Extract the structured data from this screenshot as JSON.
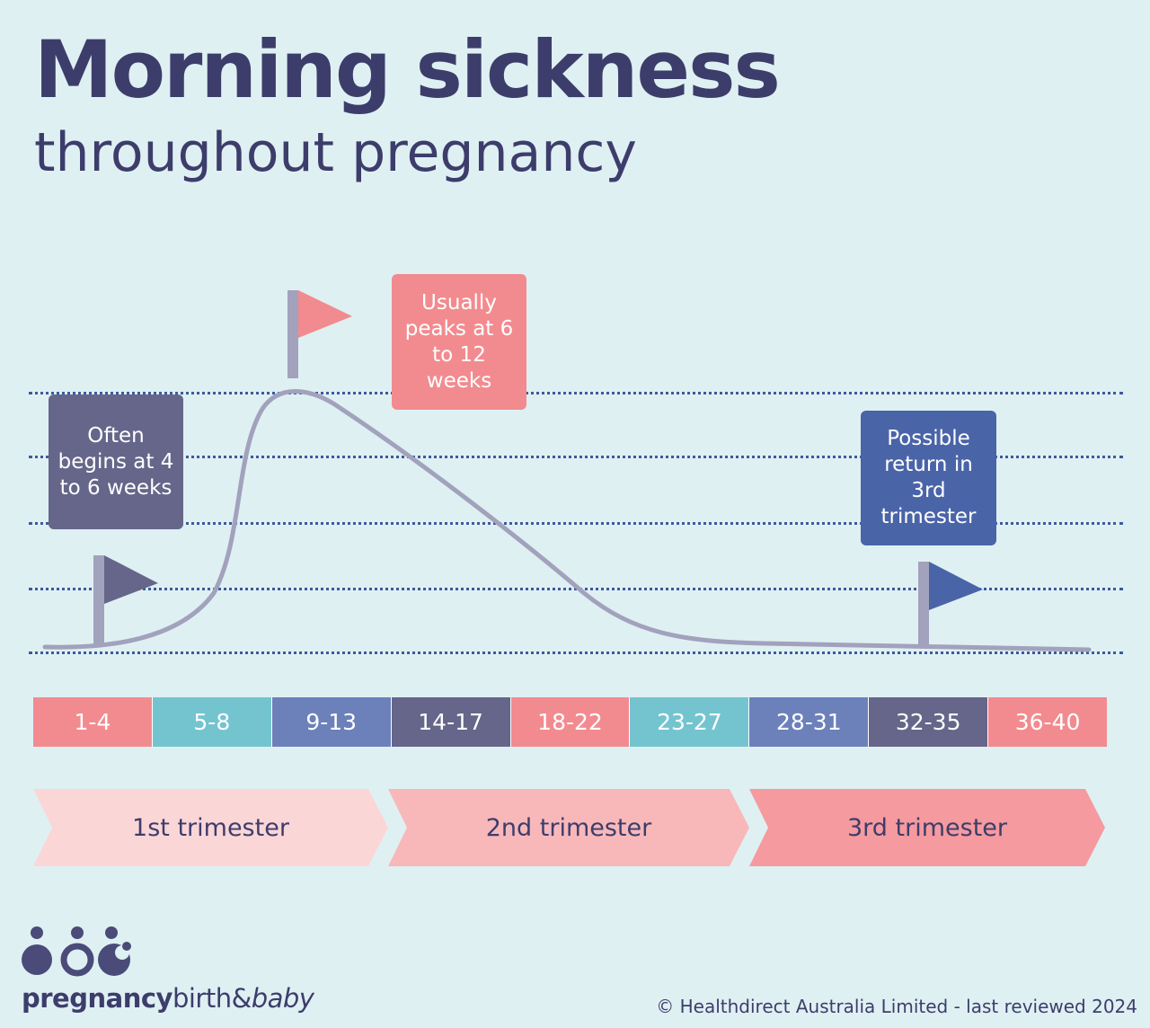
{
  "header": {
    "title": "Morning sickness",
    "subtitle": "throughout pregnancy"
  },
  "callouts": {
    "begins": "Often begins at 4 to 6 weeks",
    "peaks": "Usually peaks at 6 to 12 weeks",
    "returns": "Possible return in 3rd trimester"
  },
  "weeks": [
    "1-4",
    "5-8",
    "9-13",
    "14-17",
    "18-22",
    "23-27",
    "28-31",
    "32-35",
    "36-40"
  ],
  "trimesters": [
    "1st trimester",
    "2nd trimester",
    "3rd trimester"
  ],
  "logo": {
    "part1": "pregnancy",
    "part2": "birth&",
    "part3": "baby"
  },
  "footer": {
    "copyright": "© Healthdirect Australia Limited - last reviewed 2024"
  },
  "colors": {
    "background": "#dff0f3",
    "navy": "#3d3d6b",
    "pink": "#f28b8f",
    "teal": "#74c4d0",
    "periwinkle": "#6c80ba",
    "slate": "#66668a",
    "blue": "#4a64a8",
    "curve": "#a2a2bd"
  }
}
